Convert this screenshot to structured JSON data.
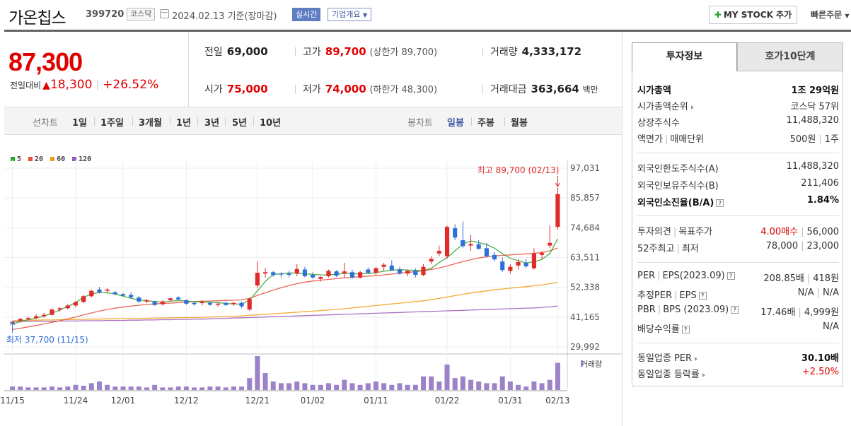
{
  "header": {
    "stock_name": "가온칩스",
    "code": "399720",
    "market": "코스닥",
    "date_text": "2024.02.13  기준(장마감)",
    "realtime_label": "실시간",
    "company_label": "기업개요",
    "mystock_label": "MY STOCK 추가",
    "quick_label": "빠른주문"
  },
  "price": {
    "current": "87,300",
    "change_label": "전일대비",
    "change_value": "18,300",
    "change_percent": "+26.52%",
    "color_up": "#e10000"
  },
  "quote": {
    "prev_close_label": "전일",
    "prev_close": "69,000",
    "high_label": "고가",
    "high": "89,700",
    "upper_limit": "(상한가 89,700)",
    "volume_label": "거래량",
    "volume": "4,333,172",
    "open_label": "시가",
    "open": "75,000",
    "low_label": "저가",
    "low": "74,000",
    "lower_limit": "(하한가 48,300)",
    "amount_label": "거래대금",
    "amount": "363,664",
    "amount_unit": "백만"
  },
  "period_bar": {
    "line_label": "선차트",
    "line_periods": [
      "1일",
      "1주일",
      "3개월",
      "1년",
      "3년",
      "5년",
      "10년"
    ],
    "candle_label": "봉차트",
    "candle_periods": [
      "일봉",
      "주봉",
      "월봉"
    ],
    "active": "일봉"
  },
  "chart_data": {
    "type": "candlestick",
    "legend": [
      {
        "name": "5",
        "color": "#2ca02c"
      },
      {
        "name": "20",
        "color": "#e74c3c"
      },
      {
        "name": "60",
        "color": "#f39c12"
      },
      {
        "name": "120",
        "color": "#9b59b6"
      }
    ],
    "y_ticks": [
      "97,031",
      "85,857",
      "74,684",
      "63,511",
      "52,338",
      "41,165",
      "29,992"
    ],
    "ylim": [
      29992,
      97031
    ],
    "x_ticks": [
      "11/15",
      "11/24",
      "12/01",
      "12/12",
      "12/21",
      "01/02",
      "01/11",
      "01/22",
      "01/31",
      "02/13"
    ],
    "high_annotation": "최고 89,700 (02/13)",
    "low_annotation": "최저 37,700 (11/15)",
    "volume_label": "거래량",
    "candles": [
      {
        "o": 38800,
        "h": 39500,
        "l": 37700,
        "c": 39300
      },
      {
        "o": 39800,
        "h": 40800,
        "l": 39000,
        "c": 40500
      },
      {
        "o": 40400,
        "h": 41400,
        "l": 39900,
        "c": 40800
      },
      {
        "o": 40800,
        "h": 42200,
        "l": 40400,
        "c": 41500
      },
      {
        "o": 41500,
        "h": 42800,
        "l": 40900,
        "c": 42000
      },
      {
        "o": 42000,
        "h": 44500,
        "l": 41700,
        "c": 44000
      },
      {
        "o": 44000,
        "h": 45000,
        "l": 43200,
        "c": 44500
      },
      {
        "o": 44500,
        "h": 46000,
        "l": 44000,
        "c": 45500
      },
      {
        "o": 45500,
        "h": 47200,
        "l": 44800,
        "c": 46800
      },
      {
        "o": 46800,
        "h": 49500,
        "l": 46500,
        "c": 49000
      },
      {
        "o": 49000,
        "h": 51500,
        "l": 48500,
        "c": 51000
      },
      {
        "o": 51500,
        "h": 52500,
        "l": 50000,
        "c": 50500
      },
      {
        "o": 51000,
        "h": 52000,
        "l": 50000,
        "c": 51500
      },
      {
        "o": 50500,
        "h": 51000,
        "l": 49300,
        "c": 49800
      },
      {
        "o": 49800,
        "h": 50300,
        "l": 49000,
        "c": 49200
      },
      {
        "o": 49500,
        "h": 50500,
        "l": 48200,
        "c": 48600
      },
      {
        "o": 48500,
        "h": 49000,
        "l": 46500,
        "c": 47000
      },
      {
        "o": 47000,
        "h": 48000,
        "l": 46500,
        "c": 47500
      },
      {
        "o": 47000,
        "h": 47300,
        "l": 45400,
        "c": 45700
      },
      {
        "o": 46000,
        "h": 47500,
        "l": 45500,
        "c": 47000
      },
      {
        "o": 47500,
        "h": 48500,
        "l": 47000,
        "c": 48200
      },
      {
        "o": 48500,
        "h": 49000,
        "l": 47500,
        "c": 47800
      },
      {
        "o": 47500,
        "h": 47800,
        "l": 45800,
        "c": 46200
      },
      {
        "o": 46500,
        "h": 47000,
        "l": 45500,
        "c": 46000
      },
      {
        "o": 46500,
        "h": 47500,
        "l": 45500,
        "c": 46800
      },
      {
        "o": 46500,
        "h": 47000,
        "l": 45400,
        "c": 45800
      },
      {
        "o": 45800,
        "h": 46500,
        "l": 45000,
        "c": 46200
      },
      {
        "o": 46500,
        "h": 47000,
        "l": 45400,
        "c": 45700
      },
      {
        "o": 46000,
        "h": 46800,
        "l": 45300,
        "c": 46500
      },
      {
        "o": 46500,
        "h": 47000,
        "l": 44500,
        "c": 45200
      },
      {
        "o": 44000,
        "h": 48500,
        "l": 43500,
        "c": 48000
      },
      {
        "o": 53000,
        "h": 62000,
        "l": 52000,
        "c": 57800
      },
      {
        "o": 57500,
        "h": 59500,
        "l": 56000,
        "c": 58000
      },
      {
        "o": 58000,
        "h": 58500,
        "l": 56300,
        "c": 57000
      },
      {
        "o": 57500,
        "h": 58000,
        "l": 56000,
        "c": 57200
      },
      {
        "o": 57500,
        "h": 58500,
        "l": 56000,
        "c": 57000
      },
      {
        "o": 57500,
        "h": 61000,
        "l": 56500,
        "c": 59200
      },
      {
        "o": 59000,
        "h": 60000,
        "l": 56000,
        "c": 56500
      },
      {
        "o": 57000,
        "h": 58000,
        "l": 55500,
        "c": 56000
      },
      {
        "o": 55500,
        "h": 56500,
        "l": 54500,
        "c": 56200
      },
      {
        "o": 56500,
        "h": 59000,
        "l": 56000,
        "c": 58500
      },
      {
        "o": 58300,
        "h": 58800,
        "l": 56200,
        "c": 56700
      },
      {
        "o": 57500,
        "h": 61500,
        "l": 56000,
        "c": 58300
      },
      {
        "o": 58000,
        "h": 59000,
        "l": 55500,
        "c": 56000
      },
      {
        "o": 56000,
        "h": 58500,
        "l": 55500,
        "c": 58000
      },
      {
        "o": 59000,
        "h": 59800,
        "l": 57500,
        "c": 57800
      },
      {
        "o": 57800,
        "h": 60000,
        "l": 57000,
        "c": 59500
      },
      {
        "o": 60000,
        "h": 61500,
        "l": 58500,
        "c": 60800
      },
      {
        "o": 60500,
        "h": 62500,
        "l": 58500,
        "c": 58800
      },
      {
        "o": 59000,
        "h": 60000,
        "l": 57000,
        "c": 57500
      },
      {
        "o": 57500,
        "h": 59000,
        "l": 56500,
        "c": 58500
      },
      {
        "o": 58500,
        "h": 59500,
        "l": 56000,
        "c": 57000
      },
      {
        "o": 57000,
        "h": 61000,
        "l": 56500,
        "c": 60000
      },
      {
        "o": 62000,
        "h": 64000,
        "l": 61000,
        "c": 63000
      },
      {
        "o": 65000,
        "h": 68000,
        "l": 64000,
        "c": 66000
      },
      {
        "o": 64000,
        "h": 75500,
        "l": 63000,
        "c": 75000
      },
      {
        "o": 74500,
        "h": 76000,
        "l": 70000,
        "c": 71000
      },
      {
        "o": 70000,
        "h": 77000,
        "l": 67000,
        "c": 67800
      },
      {
        "o": 68000,
        "h": 72000,
        "l": 66000,
        "c": 68600
      },
      {
        "o": 68500,
        "h": 70000,
        "l": 66500,
        "c": 66800
      },
      {
        "o": 67000,
        "h": 69000,
        "l": 63500,
        "c": 64000
      },
      {
        "o": 64500,
        "h": 65500,
        "l": 62000,
        "c": 62800
      },
      {
        "o": 62000,
        "h": 63500,
        "l": 58000,
        "c": 58800
      },
      {
        "o": 58500,
        "h": 61000,
        "l": 57500,
        "c": 60000
      },
      {
        "o": 60500,
        "h": 63000,
        "l": 59000,
        "c": 61800
      },
      {
        "o": 61500,
        "h": 63000,
        "l": 59500,
        "c": 60200
      },
      {
        "o": 59500,
        "h": 67000,
        "l": 59000,
        "c": 65000
      },
      {
        "o": 64500,
        "h": 66000,
        "l": 63000,
        "c": 65200
      },
      {
        "o": 68000,
        "h": 75500,
        "l": 67000,
        "c": 69000
      },
      {
        "o": 75000,
        "h": 89700,
        "l": 74000,
        "c": 87300
      }
    ],
    "ma5": [
      38500,
      39500,
      40200,
      40800,
      41600,
      42600,
      43800,
      45200,
      46600,
      48600,
      49800,
      50400,
      50300,
      49800,
      49000,
      48200,
      47600,
      47300,
      47000,
      46800,
      47100,
      47400,
      47200,
      46900,
      46900,
      46700,
      46600,
      46300,
      46100,
      46000,
      47500,
      51000,
      54500,
      57200,
      57400,
      57800,
      57600,
      57400,
      57200,
      57000,
      57000,
      57200,
      57600,
      57400,
      57400,
      57500,
      57800,
      58400,
      58700,
      59000,
      58800,
      58700,
      58600,
      59500,
      61600,
      63500,
      66000,
      68600,
      69700,
      69100,
      68400,
      67000,
      65000,
      63200,
      62300,
      61500,
      61900,
      62800,
      65000,
      70500
    ],
    "ma20": [
      36500,
      37000,
      37500,
      38000,
      38600,
      39200,
      39800,
      40500,
      41200,
      42000,
      42700,
      43400,
      44000,
      44500,
      44900,
      45300,
      45600,
      45900,
      46100,
      46300,
      46400,
      46600,
      46800,
      47000,
      47100,
      47200,
      47300,
      47400,
      47500,
      47600,
      48200,
      49300,
      50300,
      51300,
      52200,
      53000,
      53700,
      54300,
      54700,
      55000,
      55300,
      55600,
      55900,
      56100,
      56300,
      56500,
      56700,
      57000,
      57300,
      57600,
      57900,
      58200,
      58500,
      59000,
      59600,
      60300,
      61200,
      62000,
      62700,
      63300,
      63800,
      64100,
      64300,
      64500,
      64700,
      64900,
      65100,
      65400,
      66000,
      67100
    ],
    "ma60": [
      39800,
      39900,
      40000,
      40000,
      40100,
      40100,
      40200,
      40200,
      40300,
      40300,
      40400,
      40400,
      40500,
      40500,
      40600,
      40600,
      40700,
      40700,
      40800,
      40800,
      40900,
      40900,
      41000,
      41000,
      41100,
      41200,
      41300,
      41400,
      41500,
      41600,
      41800,
      42000,
      42200,
      42400,
      42600,
      42800,
      43000,
      43200,
      43400,
      43600,
      43800,
      44000,
      44300,
      44600,
      44900,
      45200,
      45500,
      45800,
      46100,
      46400,
      46700,
      47000,
      47300,
      47700,
      48200,
      48700,
      49200,
      49700,
      50200,
      50600,
      51000,
      51400,
      51700,
      52000,
      52300,
      52600,
      52900,
      53200,
      53700,
      54200
    ],
    "ma120": [
      39500,
      39500,
      39500,
      39600,
      39600,
      39600,
      39700,
      39700,
      39700,
      39800,
      39800,
      39800,
      39900,
      39900,
      39900,
      40000,
      40000,
      40100,
      40100,
      40200,
      40200,
      40300,
      40300,
      40400,
      40400,
      40500,
      40600,
      40700,
      40800,
      40900,
      41000,
      41100,
      41200,
      41300,
      41400,
      41500,
      41600,
      41700,
      41800,
      41900,
      42000,
      42100,
      42200,
      42300,
      42400,
      42500,
      42600,
      42700,
      42800,
      42900,
      43000,
      43100,
      43200,
      43300,
      43400,
      43500,
      43600,
      43700,
      43800,
      43900,
      44000,
      44100,
      44200,
      44300,
      44400,
      44500,
      44600,
      44800,
      45000,
      45300
    ],
    "volume_rel": [
      2,
      2,
      1.5,
      1.5,
      1.5,
      2,
      1.5,
      2,
      3,
      2.5,
      4,
      5,
      3,
      2,
      2,
      2,
      2,
      1.5,
      3,
      1.5,
      1.5,
      2,
      2,
      1.5,
      1.5,
      2,
      2,
      1.5,
      2,
      2,
      7,
      20,
      10,
      5,
      4,
      4,
      5,
      4,
      3,
      3,
      4,
      3,
      6,
      4,
      3,
      4,
      5,
      4,
      3,
      4,
      3,
      3,
      8,
      8,
      5,
      15,
      7,
      8,
      6,
      5,
      4,
      4,
      8,
      5,
      3,
      2,
      5,
      4,
      6,
      16
    ]
  },
  "tabs": [
    "투자정보",
    "호가10단계"
  ],
  "invest_info": {
    "group1": [
      {
        "label": "시가총액",
        "value": "1조 29억원",
        "bold": true
      },
      {
        "label": "시가총액순위",
        "arrow": true,
        "value": "코스닥 57위"
      },
      {
        "label": "상장주식수",
        "value": "11,488,320"
      },
      {
        "label": "액면가",
        "label2": "매매단위",
        "value": "500원",
        "value2": "1주"
      }
    ],
    "group2": [
      {
        "label": "외국인한도주식수(A)",
        "value": "11,488,320"
      },
      {
        "label": "외국인보유주식수(B)",
        "value": "211,406"
      },
      {
        "label": "외국인소진율(B/A)",
        "help": true,
        "value": "1.84%",
        "bold": true
      }
    ],
    "group3": [
      {
        "label": "투자의견",
        "label2": "목표주가",
        "value": "4.00매수",
        "value2": "56,000"
      },
      {
        "label": "52주최고",
        "label2": "최저",
        "value": "78,000",
        "value2": "23,000"
      }
    ],
    "group4": [
      {
        "label": "PER",
        "label2": "EPS(2023.09)",
        "help": true,
        "value": "208.85배",
        "value2": "418원"
      },
      {
        "label": "추정PER",
        "label2": "EPS",
        "help": true,
        "value": "N/A",
        "value2": "N/A"
      },
      {
        "label": "PBR",
        "label2": "BPS (2023.09)",
        "help": true,
        "value": "17.46배",
        "value2": "4,999원"
      },
      {
        "label": "배당수익률",
        "help": true,
        "value": "N/A"
      }
    ],
    "group5": [
      {
        "label": "동일업종 PER",
        "arrow": true,
        "value": "30.10배",
        "bold": true
      },
      {
        "label": "동일업종 등락률",
        "arrow": true,
        "value": "+2.50%"
      }
    ]
  }
}
